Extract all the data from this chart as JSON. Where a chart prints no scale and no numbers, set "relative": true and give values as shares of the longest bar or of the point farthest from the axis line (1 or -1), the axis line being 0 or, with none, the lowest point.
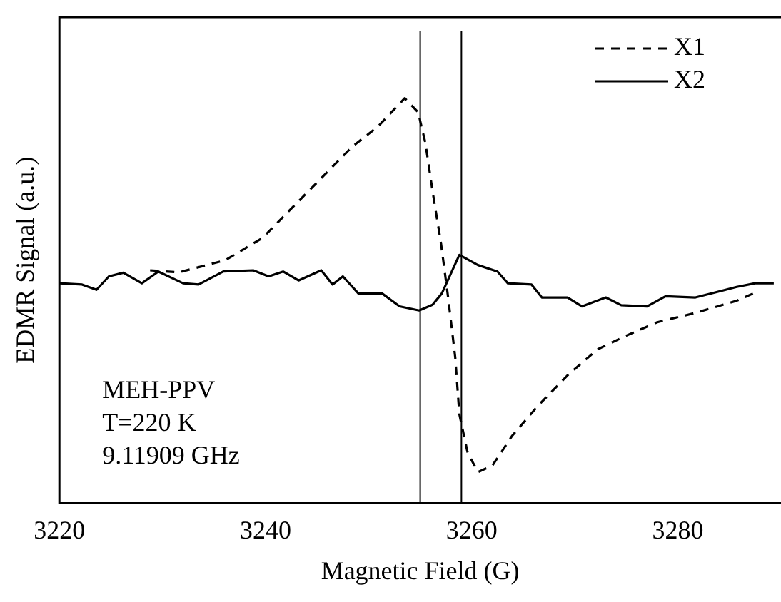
{
  "chart_data": {
    "type": "line",
    "xlabel": "Magnetic Field (G)",
    "ylabel": "EDMR Signal (a.u.)",
    "relative": true,
    "xlim": [
      3220,
      3290
    ],
    "xticks": [
      3220,
      3240,
      3260,
      3280
    ],
    "grid": false,
    "legend": "top right",
    "marker": "none",
    "annotations": [
      "MEH-PPV",
      "T=220 K",
      "9.11909 GHz"
    ],
    "ref_lines": [
      {
        "axis": "x",
        "value": 3255,
        "color": "#000000"
      },
      {
        "axis": "x",
        "value": 3259,
        "color": "#000000"
      }
    ],
    "series": [
      {
        "name": "X1",
        "color": "#000000",
        "line_style": "dashed",
        "x": [
          3228.8,
          3231.6,
          3236.1,
          3239.7,
          3242.6,
          3245.5,
          3248.4,
          3250.9,
          3253.5,
          3254.8,
          3255.5,
          3256.2,
          3257.0,
          3257.7,
          3258.4,
          3258.8,
          3259.6,
          3260.6,
          3262.0,
          3263.9,
          3266.4,
          3269.3,
          3272.2,
          3275.1,
          3278.0,
          3281.7,
          3285.7,
          3287.5
        ],
        "values": [
          0.575,
          0.57,
          0.6,
          0.655,
          0.73,
          0.805,
          0.88,
          0.93,
          1.0,
          0.965,
          0.89,
          0.77,
          0.645,
          0.51,
          0.36,
          0.22,
          0.125,
          0.077,
          0.093,
          0.166,
          0.24,
          0.316,
          0.38,
          0.415,
          0.447,
          0.47,
          0.5,
          0.52
        ]
      },
      {
        "name": "X2",
        "color": "#000000",
        "line_style": "solid",
        "x": [
          3220,
          3222.2,
          3223.6,
          3224.8,
          3226.2,
          3228.0,
          3229.6,
          3232.0,
          3233.5,
          3235.9,
          3238.8,
          3240.3,
          3241.7,
          3243.2,
          3245.4,
          3246.5,
          3247.5,
          3249.0,
          3251.3,
          3253.0,
          3254.9,
          3256.2,
          3257.1,
          3258.8,
          3260.6,
          3262.5,
          3263.5,
          3265.8,
          3266.8,
          3269.3,
          3270.7,
          3273.0,
          3274.5,
          3277.0,
          3278.8,
          3281.7,
          3285.7,
          3287.5,
          3289.3
        ],
        "values": [
          0.543,
          0.54,
          0.527,
          0.56,
          0.569,
          0.543,
          0.572,
          0.543,
          0.54,
          0.572,
          0.575,
          0.56,
          0.572,
          0.55,
          0.575,
          0.54,
          0.56,
          0.518,
          0.518,
          0.486,
          0.476,
          0.49,
          0.518,
          0.613,
          0.588,
          0.572,
          0.543,
          0.54,
          0.508,
          0.508,
          0.486,
          0.508,
          0.489,
          0.486,
          0.511,
          0.508,
          0.534,
          0.543,
          0.543
        ]
      }
    ]
  }
}
